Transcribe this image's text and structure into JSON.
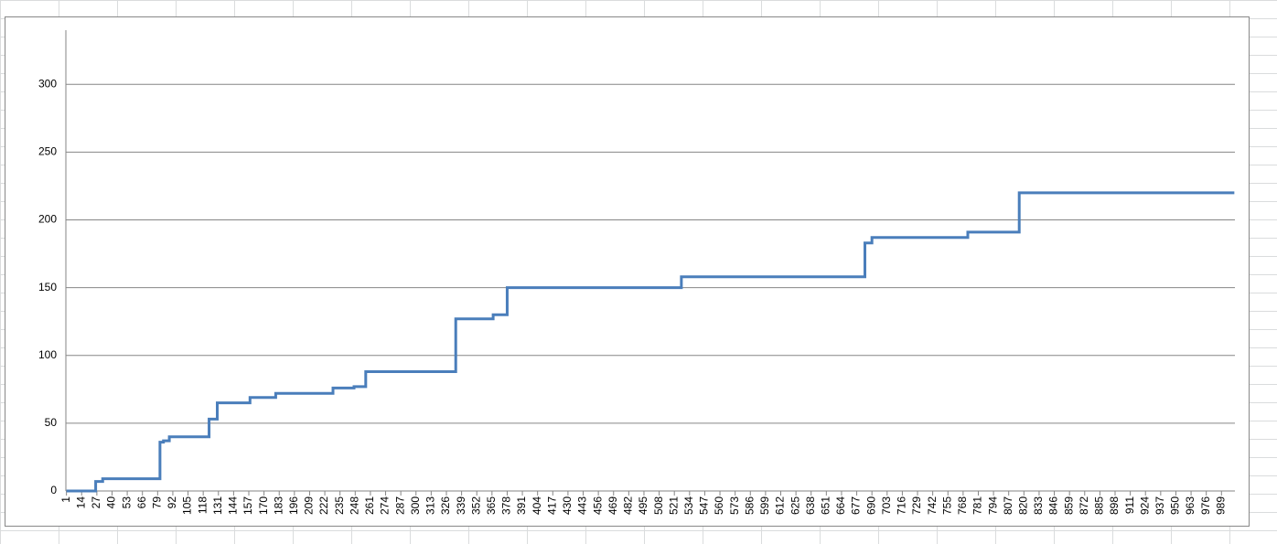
{
  "chart_data": {
    "type": "step-line",
    "x": [
      1,
      26,
      32,
      81,
      84,
      89,
      123,
      130,
      158,
      180,
      229,
      247,
      257,
      334,
      366,
      378,
      527,
      684,
      690,
      772,
      816,
      1000
    ],
    "series": [
      {
        "color": "#4a7ebb",
        "values": [
          0,
          7,
          9,
          36,
          37,
          40,
          53,
          65,
          69,
          72,
          76,
          77,
          88,
          127,
          130,
          150,
          158,
          183,
          187,
          191,
          220,
          220
        ]
      }
    ],
    "xlim": [
      0.5,
      1000.5
    ],
    "xticks": [
      1,
      14,
      27,
      40,
      53,
      66,
      79,
      92,
      105,
      118,
      131,
      144,
      157,
      170,
      183,
      196,
      209,
      222,
      235,
      248,
      261,
      274,
      287,
      300,
      313,
      326,
      339,
      352,
      365,
      378,
      391,
      404,
      417,
      430,
      443,
      456,
      469,
      482,
      495,
      508,
      521,
      534,
      547,
      560,
      573,
      586,
      599,
      612,
      625,
      638,
      651,
      664,
      677,
      690,
      703,
      716,
      729,
      742,
      755,
      768,
      781,
      794,
      807,
      820,
      833,
      846,
      859,
      872,
      885,
      898,
      911,
      924,
      937,
      950,
      963,
      976,
      989
    ],
    "ylim": [
      0,
      340
    ],
    "yticks": [
      0,
      50,
      100,
      150,
      200,
      250,
      300
    ],
    "grid": true
  }
}
